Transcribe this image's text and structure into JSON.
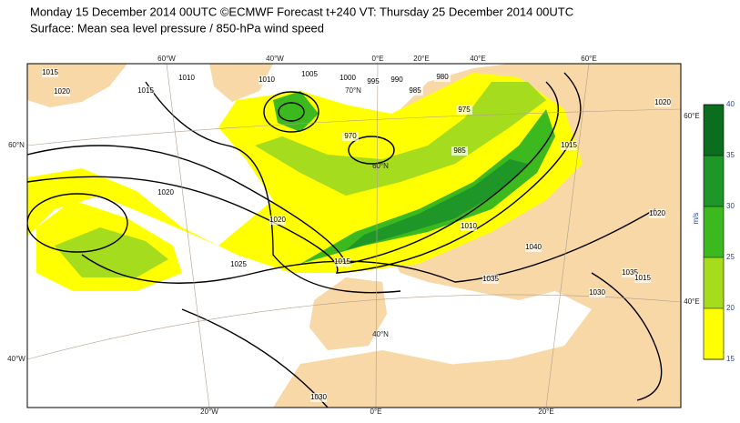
{
  "header": {
    "line1": "Monday 15 December 2014 00UTC ©ECMWF Forecast t+240 VT: Thursday 25 December 2014 00UTC",
    "line2": "Surface: Mean sea level pressure / 850-hPa wind speed"
  },
  "colorbar": {
    "unit": "m/s",
    "lim": [
      15,
      40
    ],
    "ticks": [
      15,
      20,
      25,
      30,
      35,
      40
    ],
    "colors": [
      "#ffff00",
      "#a6dc1e",
      "#3cb91e",
      "#1e9628",
      "#0a6e1e"
    ]
  },
  "graticule_labels": [
    "60°W",
    "40°W",
    "0°E",
    "20°E",
    "40°E",
    "60°E",
    "20°W",
    "0°E",
    "20°E",
    "60°N",
    "40°W",
    "60°E",
    "40°E",
    "70°N",
    "60°N",
    "40°N"
  ],
  "isobar_labels": [
    1015,
    1020,
    1015,
    1010,
    1010,
    1005,
    1000,
    995,
    990,
    985,
    980,
    975,
    970,
    985,
    1015,
    1020,
    1020,
    1020,
    1025,
    1010,
    1015,
    1030,
    1035,
    1030,
    1040,
    1020,
    1035,
    1015
  ]
}
